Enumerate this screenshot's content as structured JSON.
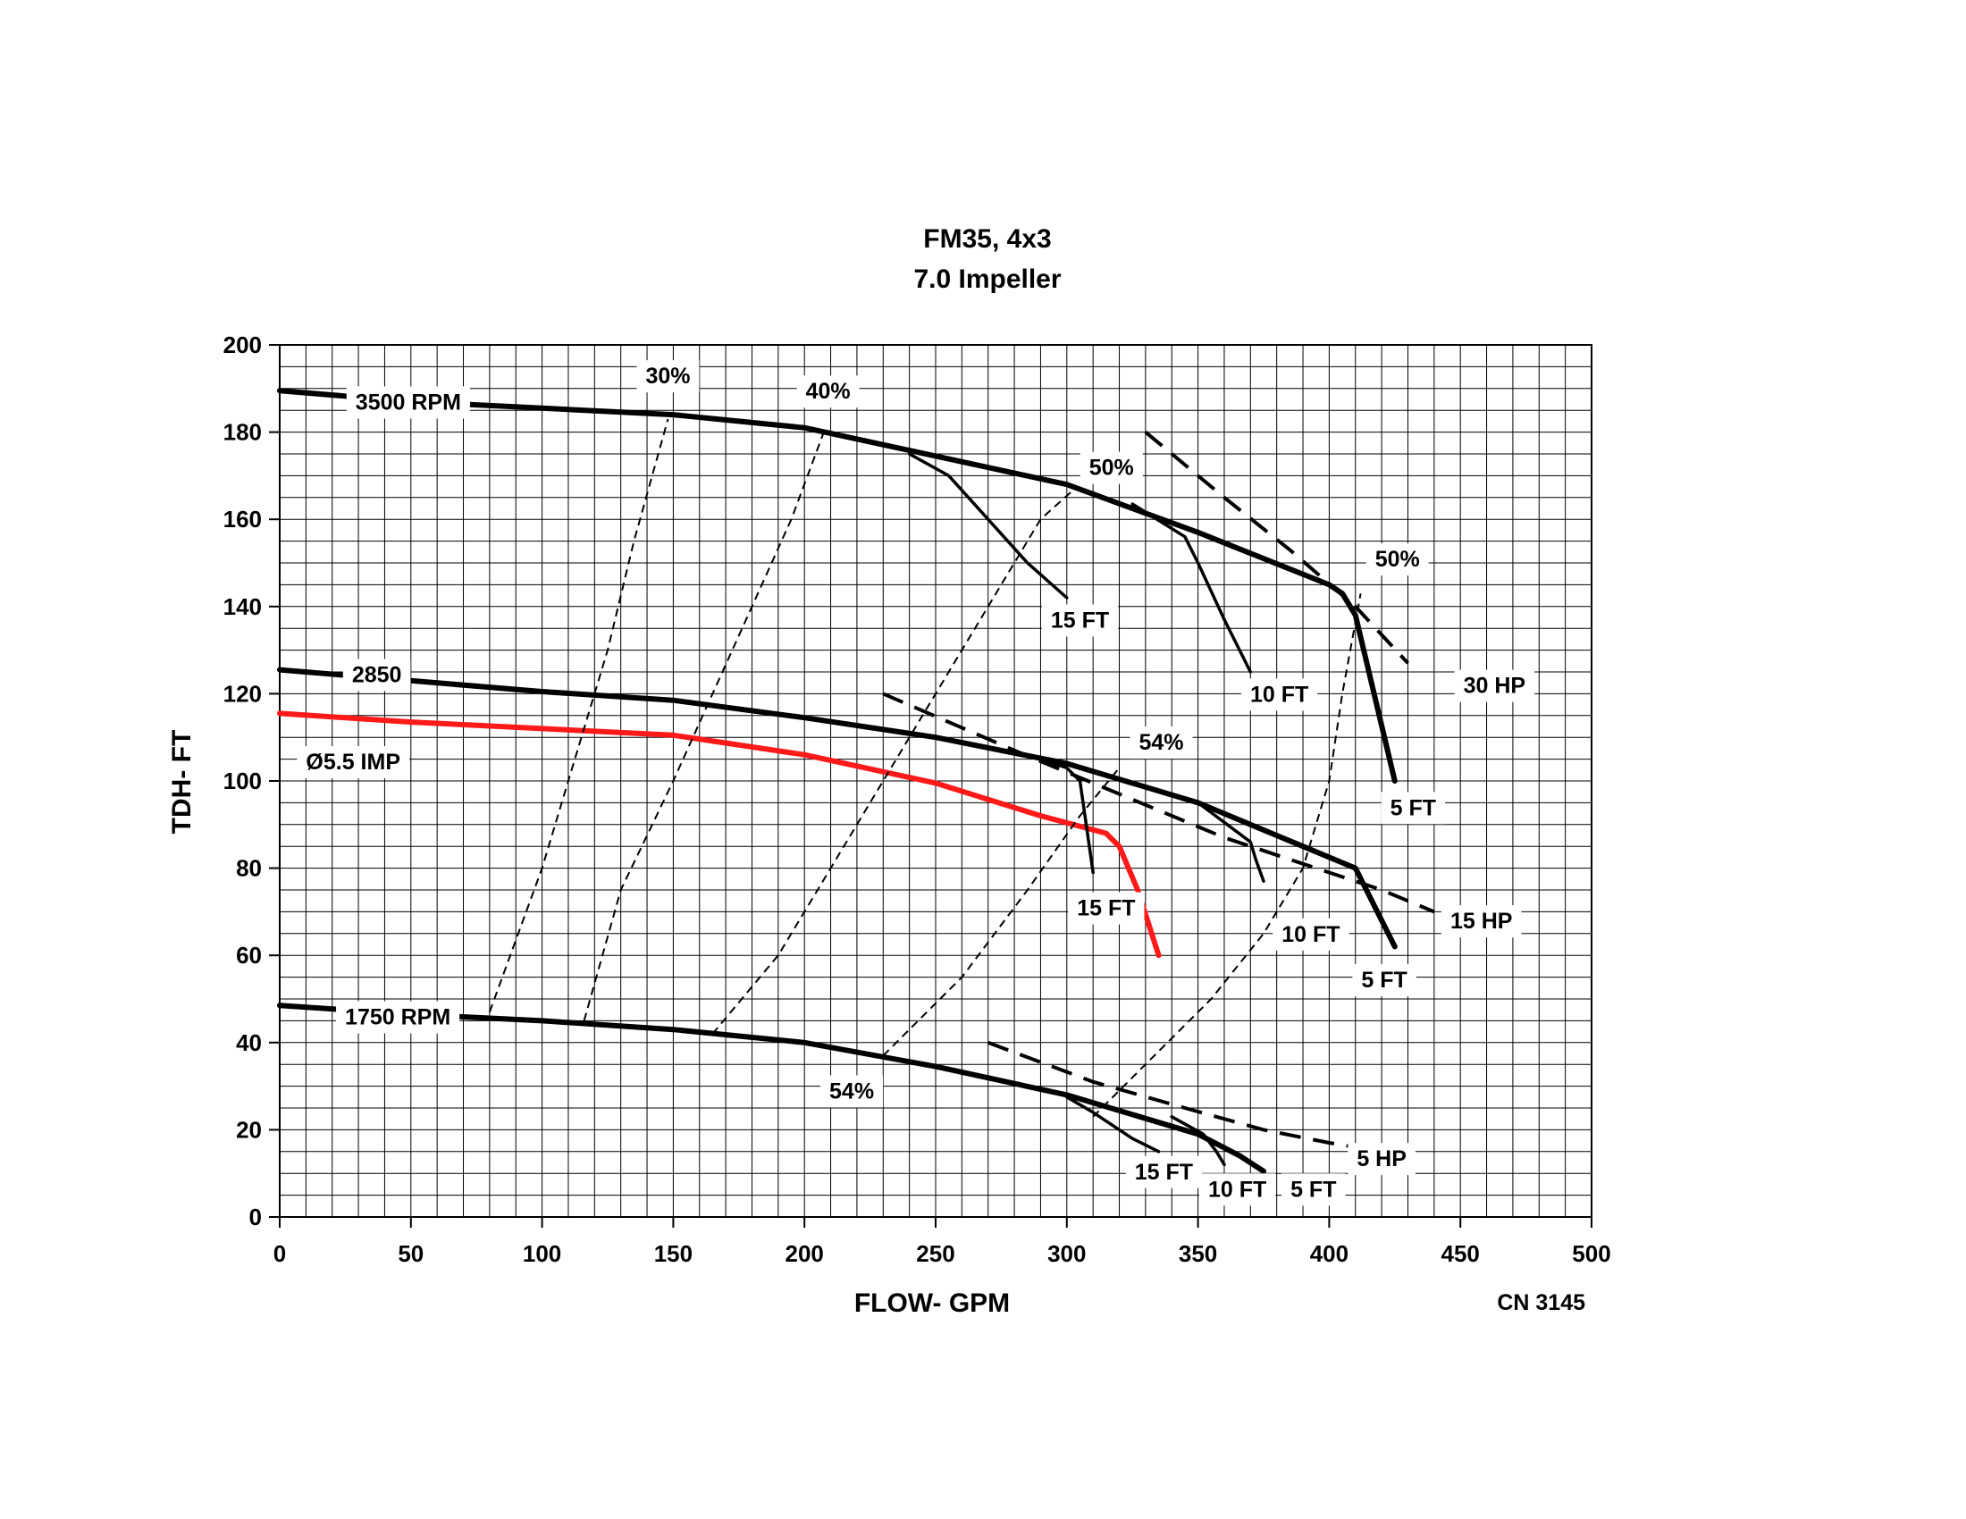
{
  "chart_data": {
    "type": "line",
    "title": "FM35, 4x3",
    "subtitle": "7.0 Impeller",
    "xlabel": "FLOW- GPM",
    "ylabel": "TDH- FT",
    "xlim": [
      0,
      500
    ],
    "ylim": [
      0,
      200
    ],
    "x_ticks": [
      0,
      50,
      100,
      150,
      200,
      250,
      300,
      350,
      400,
      450,
      500
    ],
    "y_ticks": [
      0,
      20,
      40,
      60,
      80,
      100,
      120,
      140,
      160,
      180,
      200
    ],
    "grid": true,
    "code": "CN 3145",
    "colors": {
      "curve": "#000000",
      "highlight": "#ff1a1a"
    },
    "series": [
      {
        "name": "3500 RPM",
        "style": "solid-thick",
        "color": "#000000",
        "points": [
          [
            0,
            189.5
          ],
          [
            50,
            187
          ],
          [
            100,
            185.5
          ],
          [
            150,
            184
          ],
          [
            200,
            181
          ],
          [
            250,
            174.5
          ],
          [
            300,
            168
          ],
          [
            350,
            157
          ],
          [
            400,
            145
          ],
          [
            405,
            143
          ],
          [
            410,
            138
          ],
          [
            425,
            100
          ]
        ]
      },
      {
        "name": "2850",
        "style": "solid-thick",
        "color": "#000000",
        "points": [
          [
            0,
            125.5
          ],
          [
            50,
            123
          ],
          [
            100,
            120.5
          ],
          [
            150,
            118.5
          ],
          [
            200,
            114.5
          ],
          [
            250,
            110
          ],
          [
            300,
            104
          ],
          [
            350,
            95
          ],
          [
            390,
            85
          ],
          [
            410,
            80
          ],
          [
            425,
            62
          ]
        ]
      },
      {
        "name": "Ø5.5 IMP",
        "style": "solid-thick",
        "color": "#ff1a1a",
        "points": [
          [
            0,
            115.5
          ],
          [
            50,
            113.5
          ],
          [
            100,
            112
          ],
          [
            150,
            110.5
          ],
          [
            200,
            106
          ],
          [
            250,
            99.5
          ],
          [
            290,
            92
          ],
          [
            315,
            88
          ],
          [
            320,
            85
          ],
          [
            327,
            75
          ],
          [
            335,
            60
          ]
        ]
      },
      {
        "name": "1750 RPM",
        "style": "solid-thick",
        "color": "#000000",
        "points": [
          [
            0,
            48.5
          ],
          [
            50,
            46.5
          ],
          [
            100,
            45
          ],
          [
            150,
            43
          ],
          [
            200,
            40
          ],
          [
            250,
            34.5
          ],
          [
            300,
            28
          ],
          [
            350,
            19
          ],
          [
            366,
            14
          ],
          [
            375,
            10.5
          ]
        ]
      },
      {
        "style": "solid-thin",
        "color": "#000000",
        "points": [
          [
            240,
            175
          ],
          [
            255,
            170
          ],
          [
            270,
            160
          ],
          [
            285,
            150
          ],
          [
            300,
            142
          ]
        ]
      },
      {
        "style": "solid-thin",
        "color": "#000000",
        "points": [
          [
            325,
            163.5
          ],
          [
            345,
            156
          ],
          [
            350,
            150
          ],
          [
            360,
            137
          ],
          [
            370,
            125
          ]
        ]
      },
      {
        "style": "solid-thin",
        "color": "#000000",
        "points": [
          [
            290,
            105
          ],
          [
            300,
            103
          ],
          [
            305,
            100
          ],
          [
            310,
            79
          ]
        ]
      },
      {
        "style": "solid-thin",
        "color": "#000000",
        "points": [
          [
            350,
            95
          ],
          [
            370,
            86
          ],
          [
            372,
            82
          ],
          [
            375,
            77
          ]
        ]
      },
      {
        "style": "solid-thin",
        "color": "#000000",
        "points": [
          [
            300,
            27.5
          ],
          [
            310,
            24
          ],
          [
            325,
            18
          ],
          [
            335,
            15
          ]
        ]
      },
      {
        "style": "solid-thin",
        "color": "#000000",
        "points": [
          [
            340,
            23
          ],
          [
            352,
            19
          ],
          [
            357,
            15
          ],
          [
            360,
            12
          ]
        ]
      },
      {
        "style": "dashed-thin",
        "color": "#000000",
        "points": [
          [
            80,
            47
          ],
          [
            100,
            80
          ],
          [
            115,
            110
          ],
          [
            125,
            130
          ],
          [
            135,
            155
          ],
          [
            148,
            183
          ]
        ]
      },
      {
        "style": "dashed-thin",
        "color": "#000000",
        "points": [
          [
            116,
            45
          ],
          [
            130,
            75
          ],
          [
            150,
            100
          ],
          [
            165,
            120
          ],
          [
            180,
            140
          ],
          [
            195,
            160
          ],
          [
            208,
            181
          ]
        ]
      },
      {
        "style": "dashed-thin",
        "color": "#000000",
        "points": [
          [
            165,
            42
          ],
          [
            190,
            60
          ],
          [
            210,
            80
          ],
          [
            230,
            100
          ],
          [
            250,
            120
          ],
          [
            270,
            140
          ],
          [
            290,
            160
          ],
          [
            303,
            167
          ]
        ]
      },
      {
        "style": "dashed-thin",
        "color": "#000000",
        "points": [
          [
            230,
            37
          ],
          [
            260,
            55
          ],
          [
            285,
            75
          ],
          [
            305,
            92
          ],
          [
            320,
            103
          ]
        ]
      },
      {
        "style": "dashed-thin",
        "color": "#000000",
        "points": [
          [
            310,
            23
          ],
          [
            330,
            35
          ],
          [
            355,
            50
          ],
          [
            375,
            65
          ],
          [
            390,
            80
          ],
          [
            400,
            100
          ],
          [
            405,
            120
          ],
          [
            412,
            143
          ]
        ]
      },
      {
        "style": "dashed-thick",
        "color": "#000000",
        "points": [
          [
            330,
            180
          ],
          [
            360,
            165
          ],
          [
            385,
            153
          ],
          [
            410,
            140
          ],
          [
            430,
            127
          ]
        ]
      },
      {
        "style": "dashed-thick",
        "color": "#000000",
        "points": [
          [
            230,
            120
          ],
          [
            280,
            107
          ],
          [
            320,
            97
          ],
          [
            360,
            87
          ],
          [
            395,
            80
          ],
          [
            420,
            75
          ],
          [
            440,
            70
          ]
        ]
      },
      {
        "style": "dashed-thick",
        "color": "#000000",
        "points": [
          [
            270,
            40
          ],
          [
            310,
            31
          ],
          [
            345,
            25
          ],
          [
            375,
            20
          ],
          [
            400,
            17
          ],
          [
            420,
            15
          ]
        ]
      }
    ],
    "annotations": [
      {
        "text": "30%",
        "x": 148,
        "y": 193
      },
      {
        "text": "40%",
        "x": 209,
        "y": 189.5
      },
      {
        "text": "50%",
        "x": 317,
        "y": 172
      },
      {
        "text": "50%",
        "x": 426,
        "y": 151
      },
      {
        "text": "3500 RPM",
        "x": 49,
        "y": 187
      },
      {
        "text": "15 FT",
        "x": 305,
        "y": 137
      },
      {
        "text": "10 FT",
        "x": 381,
        "y": 120
      },
      {
        "text": "30 HP",
        "x": 463,
        "y": 122
      },
      {
        "text": "2850",
        "x": 37,
        "y": 124.5
      },
      {
        "text": "Ø5.5 IMP",
        "x": 28,
        "y": 104.5,
        "color": "#ff1a1a"
      },
      {
        "text": "54%",
        "x": 336,
        "y": 109
      },
      {
        "text": "5 FT",
        "x": 432,
        "y": 94
      },
      {
        "text": "15 FT",
        "x": 315,
        "y": 71
      },
      {
        "text": "15 HP",
        "x": 458,
        "y": 68
      },
      {
        "text": "10 FT",
        "x": 393,
        "y": 65
      },
      {
        "text": "5 FT",
        "x": 421,
        "y": 54.5
      },
      {
        "text": "1750 RPM",
        "x": 45,
        "y": 46
      },
      {
        "text": "54%",
        "x": 218,
        "y": 29
      },
      {
        "text": "5 HP",
        "x": 420,
        "y": 13.5
      },
      {
        "text": "15 FT",
        "x": 337,
        "y": 10.5
      },
      {
        "text": "10 FT",
        "x": 365,
        "y": 6.5
      },
      {
        "text": "5 FT",
        "x": 394,
        "y": 6.5
      }
    ]
  }
}
